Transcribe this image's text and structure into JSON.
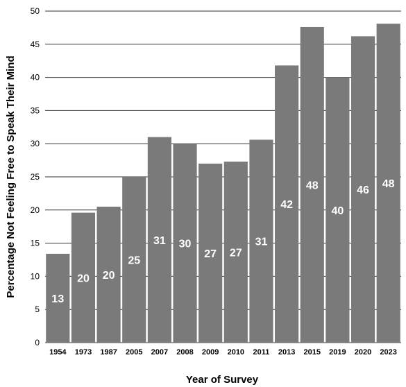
{
  "chart_data": {
    "type": "bar",
    "title": "",
    "xlabel": "Year of Survey",
    "ylabel": "Percentage Not Feeling Free to Speak Their Mind",
    "categories": [
      "1954",
      "1973",
      "1987",
      "2005",
      "2007",
      "2008",
      "2009",
      "2010",
      "2011",
      "2013",
      "2015",
      "2019",
      "2020",
      "2023"
    ],
    "values": [
      13.4,
      19.6,
      20.5,
      25.0,
      31.0,
      30.0,
      27.0,
      27.3,
      30.6,
      41.8,
      47.6,
      40.0,
      46.2,
      48.1
    ],
    "data_labels": [
      "13",
      "20",
      "20",
      "25",
      "31",
      "30",
      "27",
      "27",
      "31",
      "42",
      "48",
      "40",
      "46",
      "48"
    ],
    "yticks": [
      0,
      5,
      10,
      15,
      20,
      25,
      30,
      35,
      40,
      45,
      50
    ],
    "ylim": [
      0,
      50
    ],
    "grid": true,
    "bar_color": "#7a7a7a",
    "label_color": "#ffffff"
  }
}
